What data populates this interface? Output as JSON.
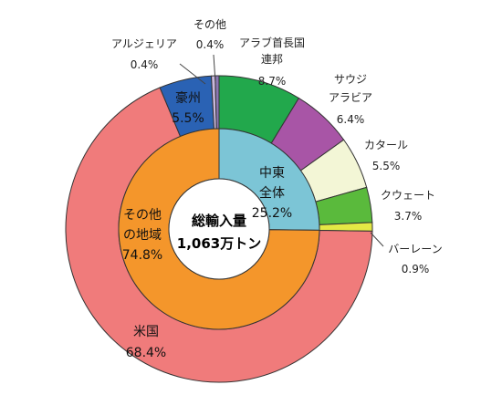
{
  "chart_data": {
    "type": "pie",
    "center_text": [
      "総輸入量",
      "1,063万トン"
    ],
    "inner": [
      {
        "name": "中東全体",
        "label_lines": [
          "中東",
          "全体"
        ],
        "value": 25.2,
        "value_text": "25.2%",
        "color": "#7cc5d6"
      },
      {
        "name": "その他の地域",
        "label_lines": [
          "その他",
          "の地域"
        ],
        "value": 74.8,
        "value_text": "74.8%",
        "color": "#f4962b"
      }
    ],
    "outer": [
      {
        "name": "アラブ首長国連邦",
        "label_lines": [
          "アラブ首長国",
          "連邦"
        ],
        "value": 8.7,
        "value_text": "8.7%",
        "color": "#22a84c"
      },
      {
        "name": "サウジアラビア",
        "label_lines": [
          "サウジ",
          "アラビア"
        ],
        "value": 6.4,
        "value_text": "6.4%",
        "color": "#a855a6"
      },
      {
        "name": "カタール",
        "label_lines": [
          "カタール"
        ],
        "value": 5.5,
        "value_text": "5.5%",
        "color": "#f3f6d6"
      },
      {
        "name": "クウェート",
        "label_lines": [
          "クウェート"
        ],
        "value": 3.7,
        "value_text": "3.7%",
        "color": "#5aba3c"
      },
      {
        "name": "バーレーン",
        "label_lines": [
          "バーレーン"
        ],
        "value": 0.9,
        "value_text": "0.9%",
        "color": "#e4e845"
      },
      {
        "name": "米国",
        "label_lines": [
          "米国"
        ],
        "value": 68.4,
        "value_text": "68.4%",
        "color": "#f07b7b"
      },
      {
        "name": "豪州",
        "label_lines": [
          "豪州"
        ],
        "value": 5.5,
        "value_text": "5.5%",
        "color": "#2a62b4"
      },
      {
        "name": "アルジェリア",
        "label_lines": [
          "アルジェリア"
        ],
        "value": 0.4,
        "value_text": "0.4%",
        "color": "#c9b8dc"
      },
      {
        "name": "その他",
        "label_lines": [
          "その他"
        ],
        "value": 0.4,
        "value_text": "0.4%",
        "color": "#8a76b3"
      }
    ]
  }
}
